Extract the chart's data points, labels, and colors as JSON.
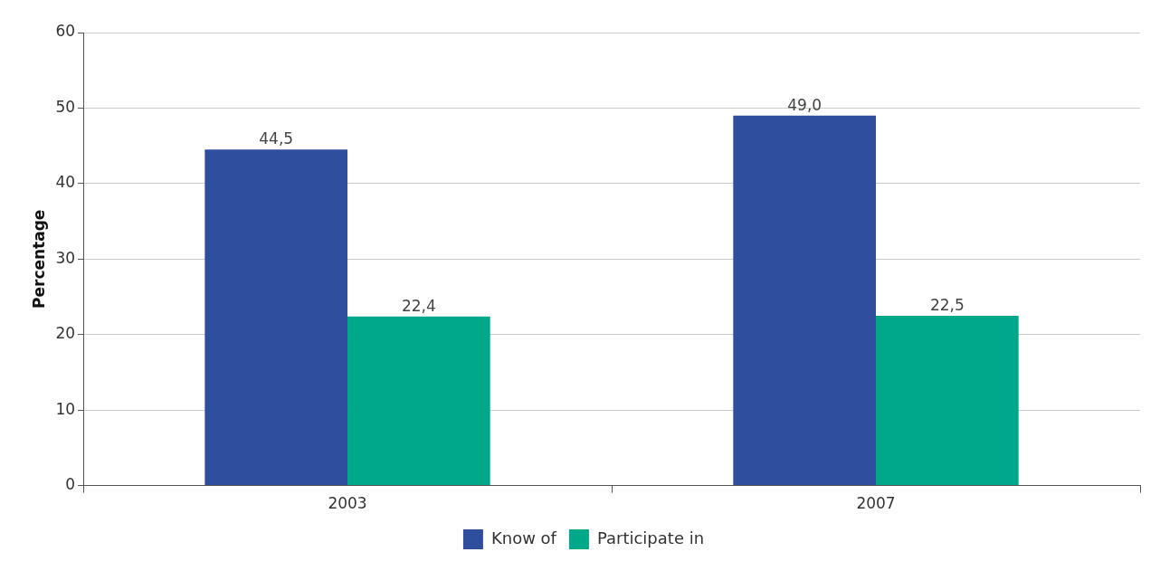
{
  "chart_data": {
    "type": "bar",
    "ylabel": "Percentage",
    "categories": [
      "2003",
      "2007"
    ],
    "series": [
      {
        "name": "Know of",
        "color": "#2f4e9e",
        "values": [
          44.5,
          49.0
        ],
        "value_labels": [
          "44,5",
          "49,0"
        ]
      },
      {
        "name": "Participate in",
        "color": "#00a88a",
        "values": [
          22.4,
          22.5
        ],
        "value_labels": [
          "22,4",
          "22,5"
        ]
      }
    ],
    "ylim": [
      0,
      60
    ],
    "yticks": [
      0,
      10,
      20,
      30,
      40,
      50,
      60
    ],
    "grid": "y",
    "legend": "bottom"
  }
}
